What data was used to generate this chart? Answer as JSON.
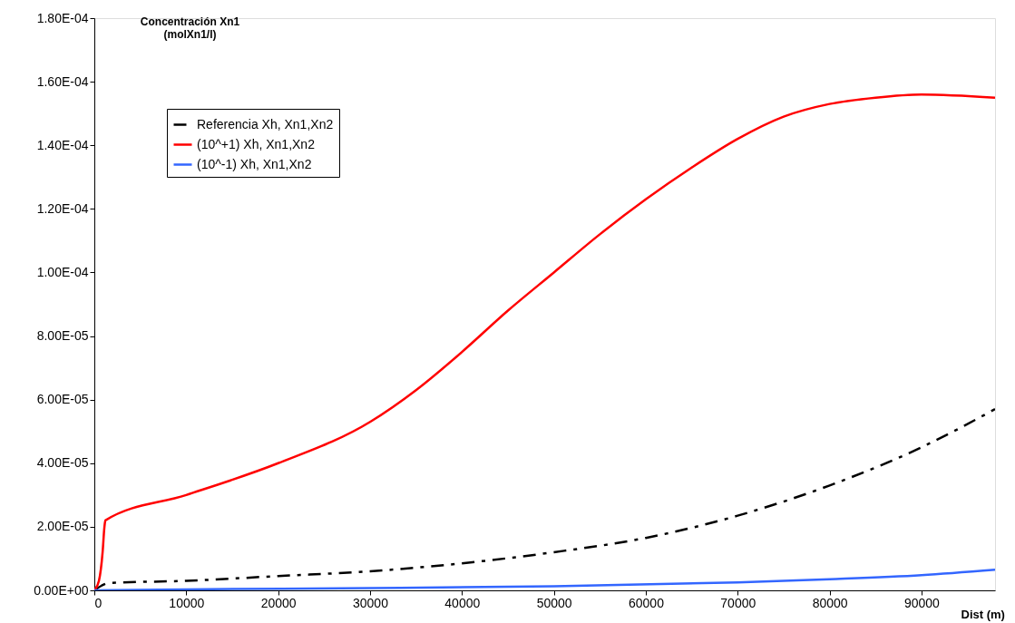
{
  "chart_data": {
    "type": "line",
    "xlabel": "Dist (m)",
    "ylabel": "Concentración Xn1\n(molXn1/l)",
    "xlim": [
      0,
      98000
    ],
    "xticks": [
      0,
      10000,
      20000,
      30000,
      40000,
      50000,
      60000,
      70000,
      80000,
      90000
    ],
    "ylim": [
      0,
      0.00018
    ],
    "yticks": [
      {
        "value": 0,
        "label": "0.00E+00"
      },
      {
        "value": 2e-05,
        "label": "2.00E-05"
      },
      {
        "value": 4e-05,
        "label": "4.00E-05"
      },
      {
        "value": 6e-05,
        "label": "6.00E-05"
      },
      {
        "value": 8e-05,
        "label": "8.00E-05"
      },
      {
        "value": 0.0001,
        "label": "1.00E-04"
      },
      {
        "value": 0.00012,
        "label": "1.20E-04"
      },
      {
        "value": 0.00014,
        "label": "1.40E-04"
      },
      {
        "value": 0.00016,
        "label": "1.60E-04"
      },
      {
        "value": 0.00018,
        "label": "1.80E-04"
      }
    ],
    "grid": false,
    "legend": "top left",
    "marker": "none",
    "series": [
      {
        "name": "Referencia Xh, Xn1,Xn2",
        "color": "#000000",
        "line_style": "dashed",
        "x": [
          0,
          800,
          1500,
          10000,
          20000,
          30000,
          40000,
          50000,
          60000,
          70000,
          80000,
          90000,
          98000
        ],
        "values": [
          0,
          1.5e-06,
          2.3e-06,
          3e-06,
          4.5e-06,
          6e-06,
          8.5e-06,
          1.2e-05,
          1.65e-05,
          2.35e-05,
          3.3e-05,
          4.5e-05,
          5.7e-05
        ]
      },
      {
        "name": "(10^+1) Xh, Xn1,Xn2",
        "color": "#ff0000",
        "line_style": "solid",
        "x": [
          0,
          500,
          900,
          1100,
          1200,
          10000,
          20000,
          30000,
          35000,
          40000,
          45000,
          50000,
          55000,
          60000,
          65000,
          70000,
          75000,
          80000,
          85000,
          90000,
          98000
        ],
        "values": [
          0,
          3e-06,
          1.2e-05,
          2e-05,
          2.2e-05,
          3e-05,
          4e-05,
          5.3e-05,
          6.3e-05,
          7.5e-05,
          8.8e-05,
          0.0001,
          0.000112,
          0.000123,
          0.000133,
          0.000142,
          0.000149,
          0.000153,
          0.000155,
          0.000156,
          0.000155
        ]
      },
      {
        "name": "(10^-1) Xh, Xn1,Xn2",
        "color": "#3366ff",
        "line_style": "solid",
        "x": [
          0,
          10000,
          30000,
          50000,
          70000,
          80000,
          90000,
          98000
        ],
        "values": [
          0,
          3e-07,
          7e-07,
          1.3e-06,
          2.5e-06,
          3.5e-06,
          4.8e-06,
          6.5e-06
        ]
      }
    ]
  }
}
